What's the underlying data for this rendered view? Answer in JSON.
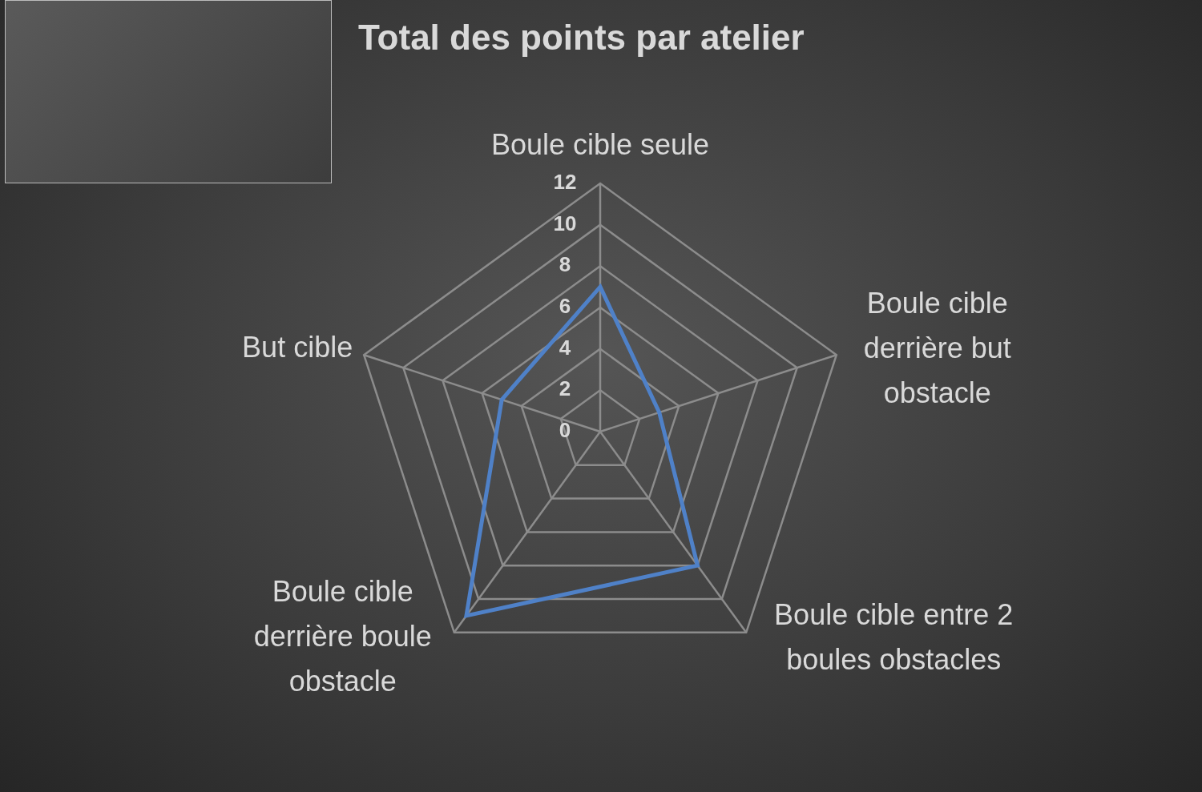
{
  "chart_data": {
    "type": "radar",
    "title": "Total des points par atelier",
    "categories": [
      "Boule cible seule",
      "Boule cible derrière but obstacle",
      "Boule cible entre 2 boules obstacles",
      "Boule cible derrière boule obstacle",
      "But cible"
    ],
    "values": [
      7,
      3,
      8,
      11,
      5
    ],
    "color": "#4f81c8",
    "ylim": [
      0,
      12
    ],
    "yticks": [
      0,
      2,
      4,
      6,
      8,
      10,
      12
    ],
    "grid": true
  }
}
